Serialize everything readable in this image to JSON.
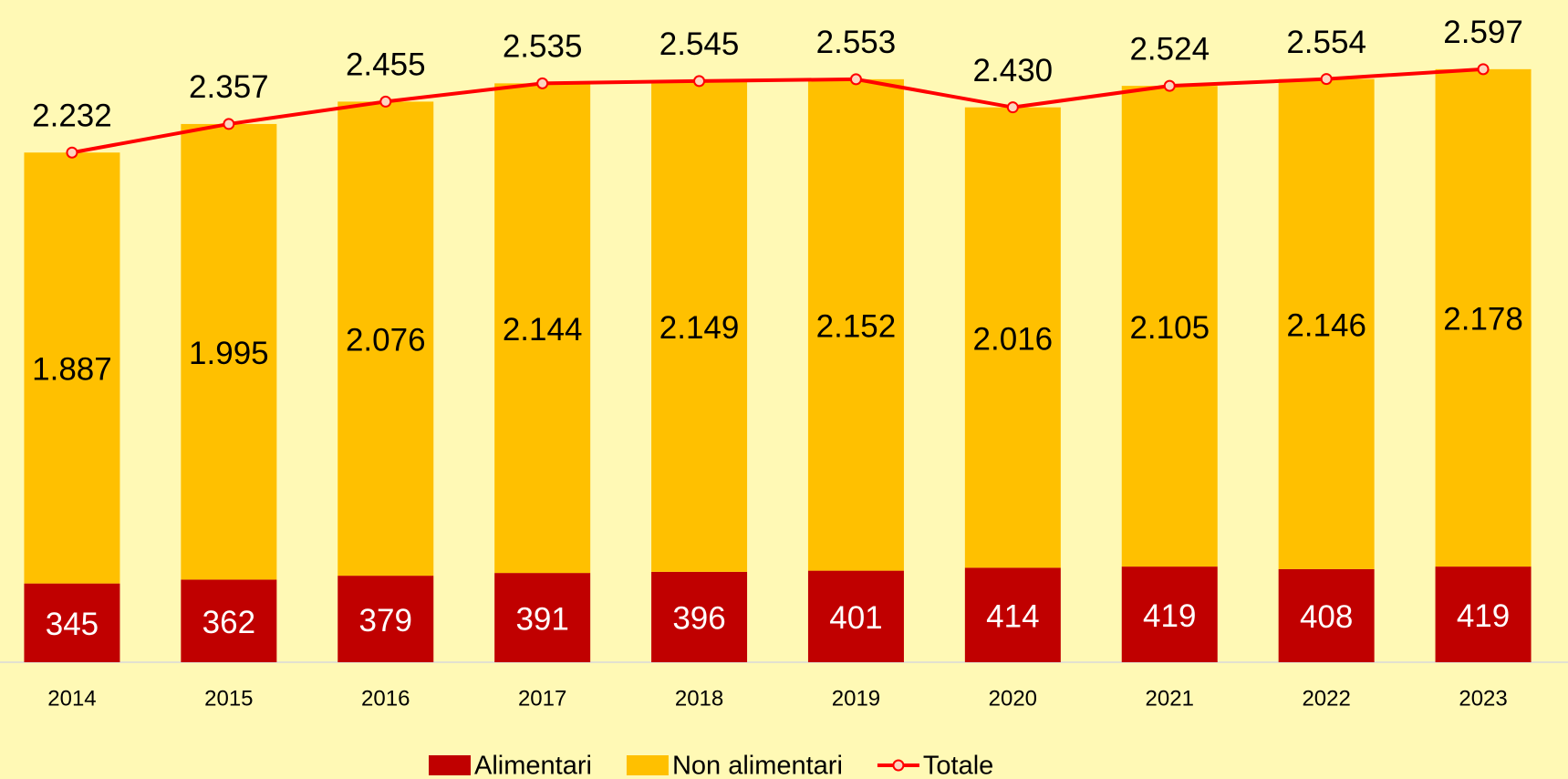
{
  "chart_data": {
    "type": "stacked-bar-line",
    "categories": [
      "2014",
      "2015",
      "2016",
      "2017",
      "2018",
      "2019",
      "2020",
      "2021",
      "2022",
      "2023"
    ],
    "series": [
      {
        "name": "Alimentari",
        "color": "#c00000",
        "kind": "bar",
        "label_color": "#ffffff",
        "values": [
          345,
          362,
          379,
          391,
          396,
          401,
          414,
          419,
          408,
          419
        ]
      },
      {
        "name": "Non alimentari",
        "color": "#ffc000",
        "kind": "bar",
        "label_color": "#000000",
        "values": [
          1887,
          1995,
          2076,
          2144,
          2149,
          2152,
          2016,
          2105,
          2146,
          2178
        ],
        "value_labels": [
          "1.887",
          "1.995",
          "2.076",
          "2.144",
          "2.149",
          "2.152",
          "2.016",
          "2.105",
          "2.146",
          "2.178"
        ]
      },
      {
        "name": "Totale",
        "color": "#ff0000",
        "kind": "line",
        "marker_fill": "#fcd5c0",
        "label_color": "#000000",
        "values": [
          2232,
          2357,
          2455,
          2535,
          2545,
          2553,
          2430,
          2524,
          2554,
          2597
        ],
        "value_labels": [
          "2.232",
          "2.357",
          "2.455",
          "2.535",
          "2.545",
          "2.553",
          "2.430",
          "2.524",
          "2.554",
          "2.597"
        ]
      }
    ],
    "ylim": [
      0,
      2900
    ],
    "grid": false,
    "legend": "bottom"
  }
}
